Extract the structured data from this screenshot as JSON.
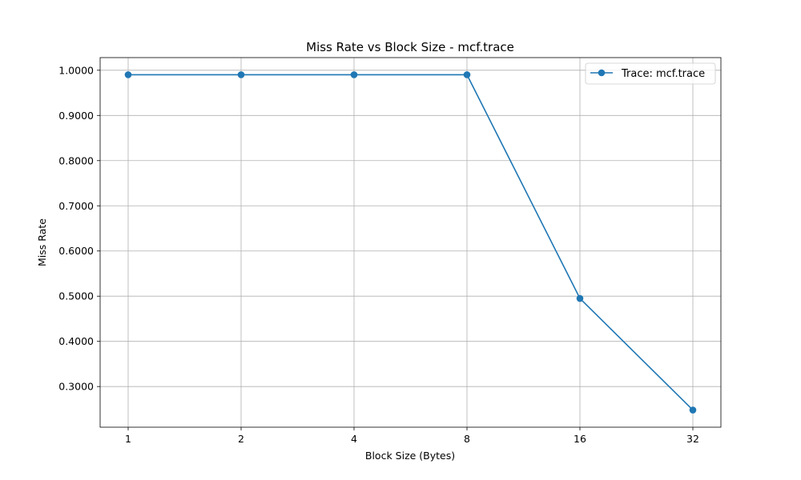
{
  "chart_data": {
    "type": "line",
    "title": "Miss Rate vs Block Size - mcf.trace",
    "xlabel": "Block Size (Bytes)",
    "ylabel": "Miss Rate",
    "categories": [
      "1",
      "2",
      "4",
      "8",
      "16",
      "32"
    ],
    "series": [
      {
        "name": "Trace: mcf.trace",
        "values": [
          0.99,
          0.99,
          0.99,
          0.99,
          0.495,
          0.248
        ],
        "color": "#1f77b4",
        "marker": "circle"
      }
    ],
    "ylim": [
      0.21,
      1.028
    ],
    "yticks": [
      0.3,
      0.4,
      0.5,
      0.6,
      0.7,
      0.8,
      0.9,
      1.0
    ],
    "ytick_labels": [
      "0.3000",
      "0.4000",
      "0.5000",
      "0.6000",
      "0.7000",
      "0.8000",
      "0.9000",
      "1.0000"
    ],
    "grid": true,
    "legend_position": "top-right"
  }
}
